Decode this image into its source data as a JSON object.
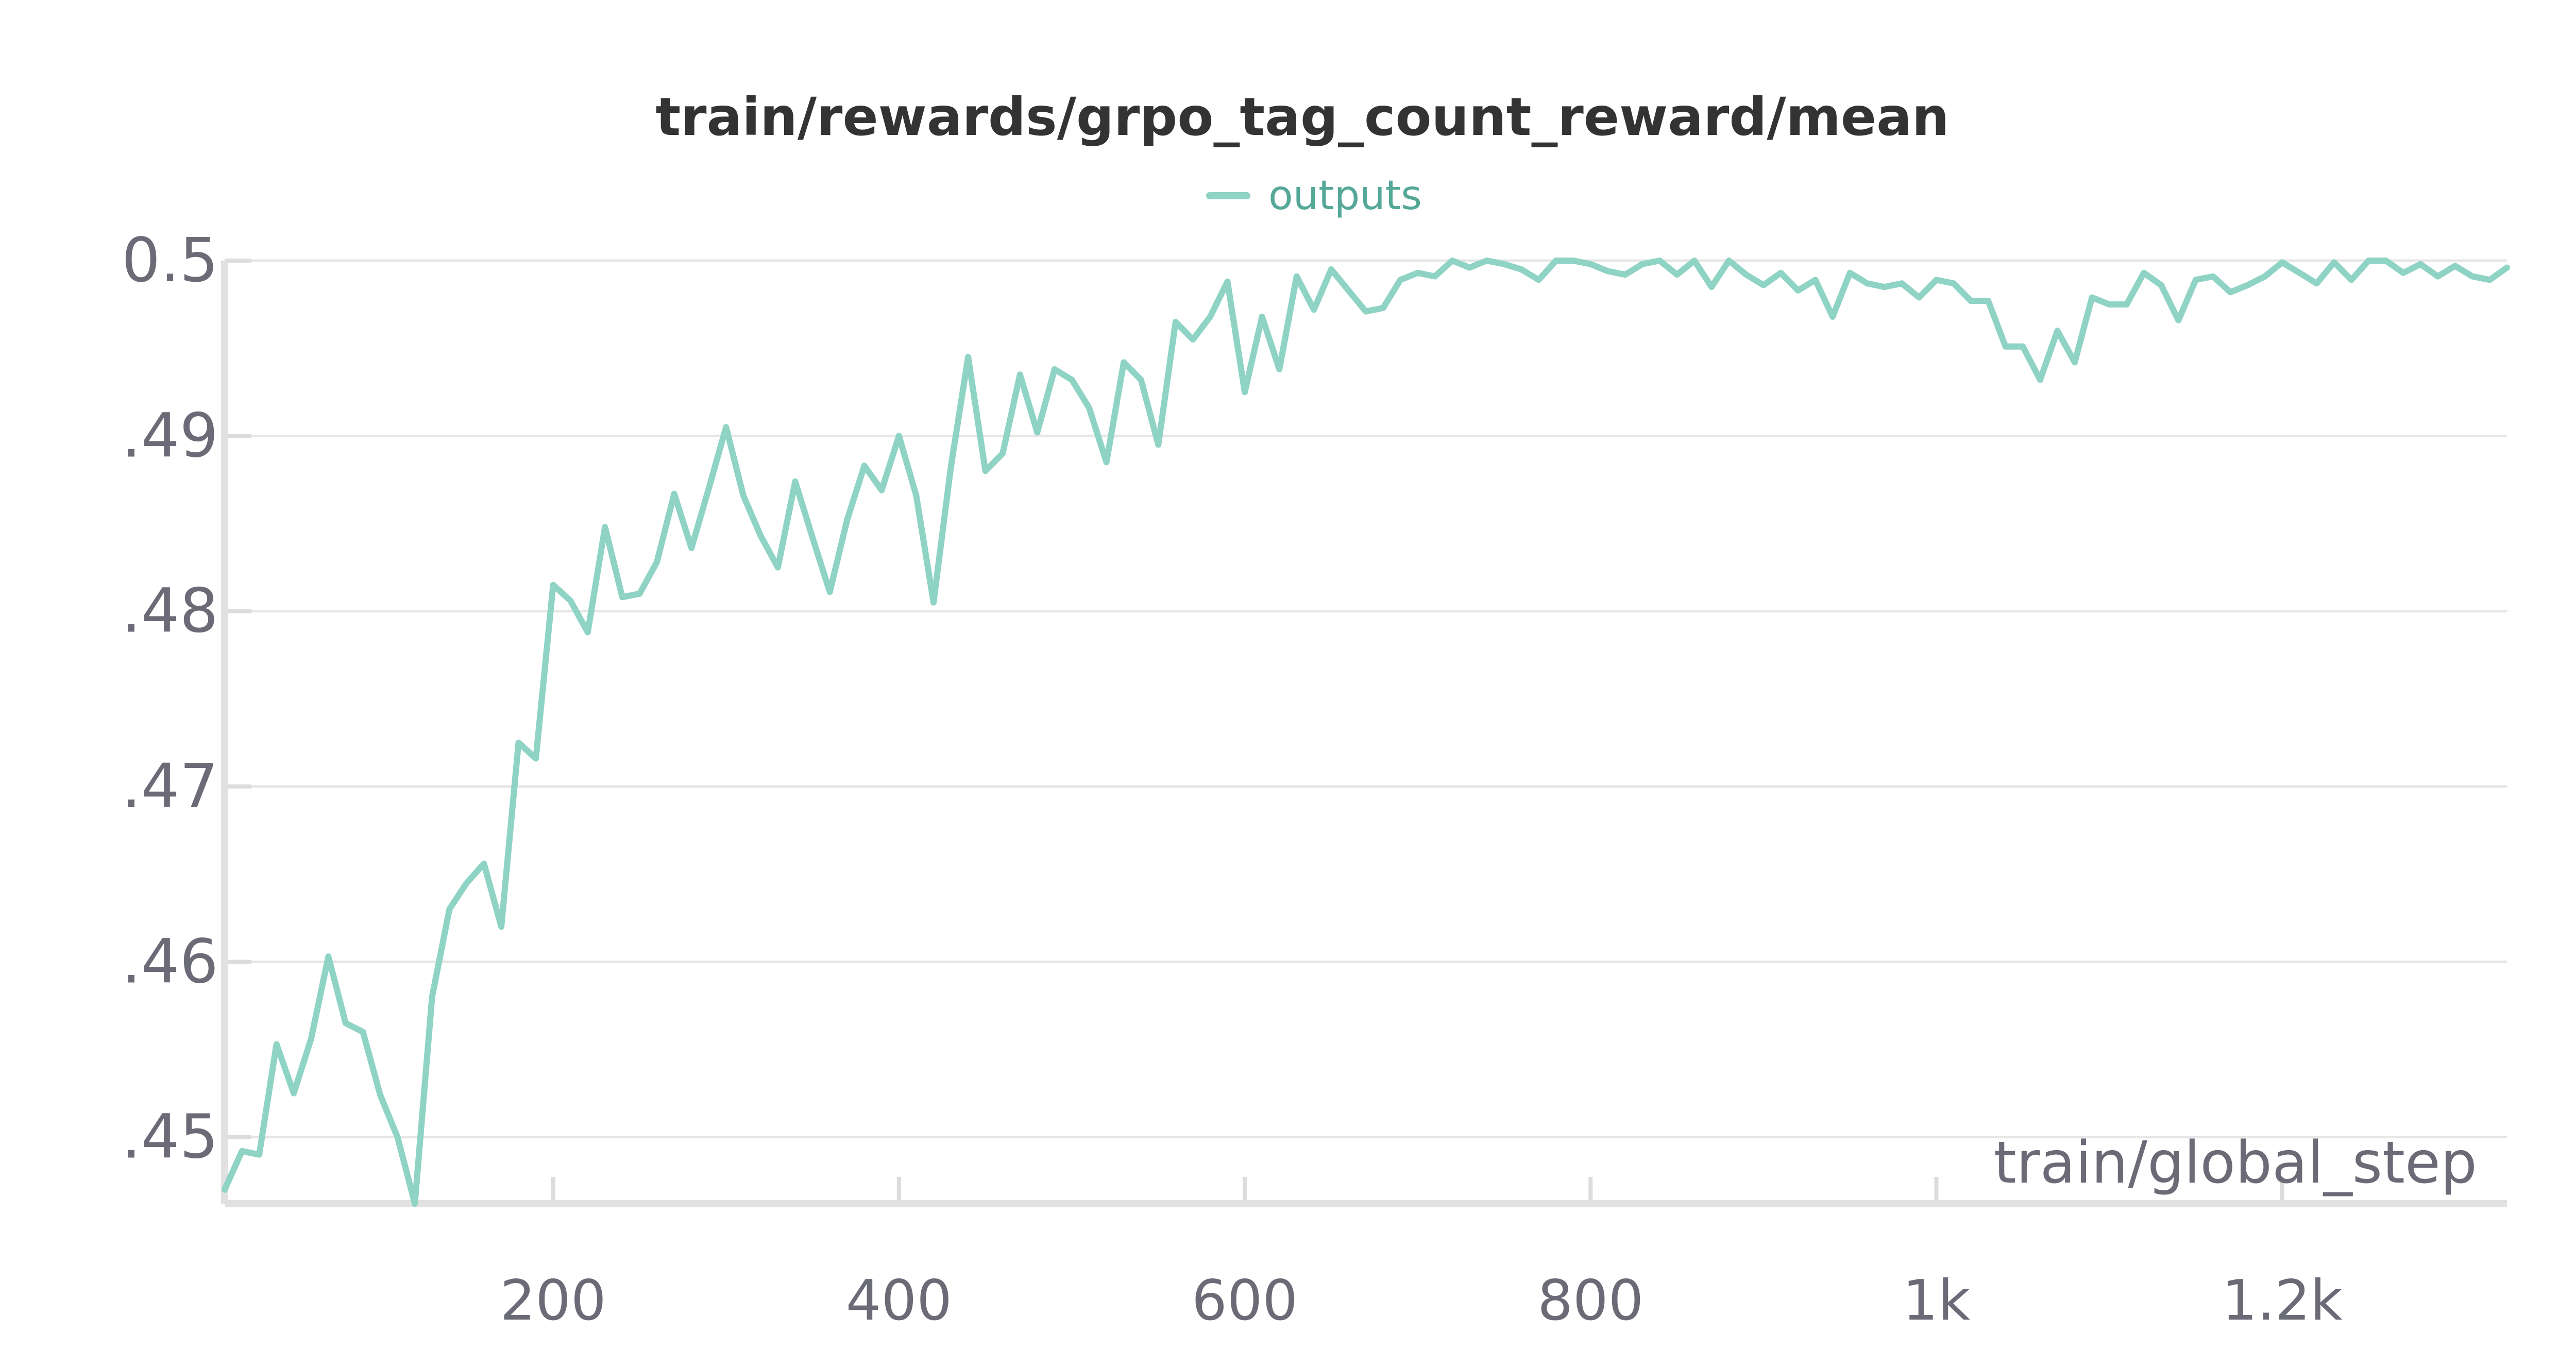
{
  "chart_data": {
    "type": "line",
    "title": "train/rewards/grpo_tag_count_reward/mean",
    "xlabel": "train/global_step",
    "ylabel": "",
    "xlim": [
      10,
      1330
    ],
    "ylim": [
      0.4462,
      0.5
    ],
    "x_ticks": [
      200,
      400,
      600,
      800,
      1000,
      1200
    ],
    "x_tick_labels": [
      "200",
      "400",
      "600",
      "800",
      "1k",
      "1.2k"
    ],
    "y_ticks": [
      0.45,
      0.46,
      0.47,
      0.48,
      0.49,
      0.5
    ],
    "y_tick_labels": [
      ".45",
      ".46",
      ".47",
      ".48",
      ".49",
      "0.5"
    ],
    "grid": true,
    "legend": {
      "position": "top-center"
    },
    "series": [
      {
        "name": "outputs",
        "color": "#8ed3c3",
        "x": [
          10,
          20,
          30,
          40,
          50,
          60,
          70,
          80,
          90,
          100,
          110,
          120,
          130,
          140,
          150,
          160,
          170,
          180,
          190,
          200,
          210,
          220,
          230,
          240,
          250,
          260,
          270,
          280,
          290,
          300,
          310,
          320,
          330,
          340,
          350,
          360,
          370,
          380,
          390,
          400,
          410,
          420,
          430,
          440,
          450,
          460,
          470,
          480,
          490,
          500,
          510,
          520,
          530,
          540,
          550,
          560,
          570,
          580,
          590,
          600,
          610,
          620,
          630,
          640,
          650,
          660,
          670,
          680,
          690,
          700,
          710,
          720,
          730,
          740,
          750,
          760,
          770,
          780,
          790,
          800,
          810,
          820,
          830,
          840,
          850,
          860,
          870,
          880,
          890,
          900,
          910,
          920,
          930,
          940,
          950,
          960,
          970,
          980,
          990,
          1000,
          1010,
          1020,
          1030,
          1040,
          1050,
          1060,
          1070,
          1080,
          1090,
          1100,
          1110,
          1120,
          1130,
          1140,
          1150,
          1160,
          1170,
          1180,
          1190,
          1200,
          1210,
          1220,
          1230,
          1240,
          1250,
          1260,
          1270,
          1280,
          1290,
          1300,
          1310,
          1320,
          1330
        ],
        "values": [
          0.447,
          0.4492,
          0.449,
          0.4553,
          0.4525,
          0.4556,
          0.4603,
          0.4565,
          0.456,
          0.4524,
          0.45,
          0.4462,
          0.458,
          0.463,
          0.4645,
          0.4656,
          0.462,
          0.4725,
          0.4716,
          0.4815,
          0.4806,
          0.4788,
          0.4848,
          0.4808,
          0.481,
          0.4828,
          0.4867,
          0.4836,
          0.487,
          0.4905,
          0.4866,
          0.4843,
          0.4825,
          0.4874,
          0.4842,
          0.4811,
          0.4852,
          0.4883,
          0.4869,
          0.49,
          0.4866,
          0.4805,
          0.4882,
          0.4945,
          0.488,
          0.489,
          0.4935,
          0.4902,
          0.4938,
          0.4932,
          0.4916,
          0.4885,
          0.4942,
          0.4932,
          0.4895,
          0.4965,
          0.4955,
          0.4968,
          0.4988,
          0.4925,
          0.4968,
          0.4938,
          0.4991,
          0.4972,
          0.4995,
          0.4983,
          0.4971,
          0.4973,
          0.4989,
          0.4993,
          0.4991,
          0.5,
          0.4996,
          0.5,
          0.4998,
          0.4995,
          0.4989,
          0.5,
          0.5,
          0.4998,
          0.4994,
          0.4992,
          0.4998,
          0.5,
          0.4992,
          0.5,
          0.4985,
          0.5,
          0.4992,
          0.4986,
          0.4993,
          0.4983,
          0.4989,
          0.4968,
          0.4993,
          0.4987,
          0.4985,
          0.4987,
          0.4979,
          0.4989,
          0.4987,
          0.4977,
          0.4977,
          0.4951,
          0.4951,
          0.4932,
          0.496,
          0.4942,
          0.4979,
          0.4975,
          0.4975,
          0.4993,
          0.4986,
          0.4966,
          0.4989,
          0.4991,
          0.4982,
          0.4986,
          0.4991,
          0.4999,
          0.4993,
          0.4987,
          0.4999,
          0.4989,
          0.5,
          0.5,
          0.4993,
          0.4998,
          0.4991,
          0.4997,
          0.4991,
          0.4989,
          0.4996
        ]
      }
    ]
  }
}
